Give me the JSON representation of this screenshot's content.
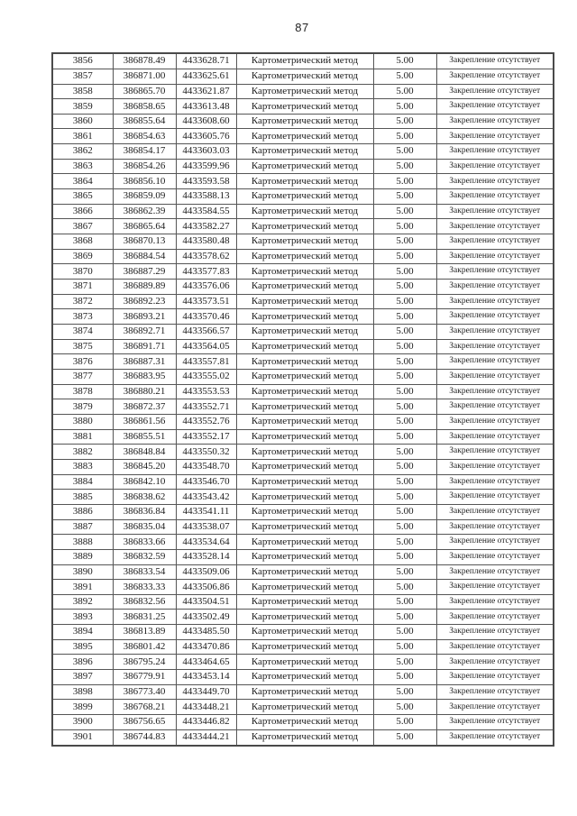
{
  "page": {
    "number": "87"
  },
  "table": {
    "method_label": "Картометрический метод",
    "precision_value": "5.00",
    "fixation_label": "Закрепление отсутствует",
    "rows": [
      [
        "3856",
        "386878.49",
        "4433628.71"
      ],
      [
        "3857",
        "386871.00",
        "4433625.61"
      ],
      [
        "3858",
        "386865.70",
        "4433621.87"
      ],
      [
        "3859",
        "386858.65",
        "4433613.48"
      ],
      [
        "3860",
        "386855.64",
        "4433608.60"
      ],
      [
        "3861",
        "386854.63",
        "4433605.76"
      ],
      [
        "3862",
        "386854.17",
        "4433603.03"
      ],
      [
        "3863",
        "386854.26",
        "4433599.96"
      ],
      [
        "3864",
        "386856.10",
        "4433593.58"
      ],
      [
        "3865",
        "386859.09",
        "4433588.13"
      ],
      [
        "3866",
        "386862.39",
        "4433584.55"
      ],
      [
        "3867",
        "386865.64",
        "4433582.27"
      ],
      [
        "3868",
        "386870.13",
        "4433580.48"
      ],
      [
        "3869",
        "386884.54",
        "4433578.62"
      ],
      [
        "3870",
        "386887.29",
        "4433577.83"
      ],
      [
        "3871",
        "386889.89",
        "4433576.06"
      ],
      [
        "3872",
        "386892.23",
        "4433573.51"
      ],
      [
        "3873",
        "386893.21",
        "4433570.46"
      ],
      [
        "3874",
        "386892.71",
        "4433566.57"
      ],
      [
        "3875",
        "386891.71",
        "4433564.05"
      ],
      [
        "3876",
        "386887.31",
        "4433557.81"
      ],
      [
        "3877",
        "386883.95",
        "4433555.02"
      ],
      [
        "3878",
        "386880.21",
        "4433553.53"
      ],
      [
        "3879",
        "386872.37",
        "4433552.71"
      ],
      [
        "3880",
        "386861.56",
        "4433552.76"
      ],
      [
        "3881",
        "386855.51",
        "4433552.17"
      ],
      [
        "3882",
        "386848.84",
        "4433550.32"
      ],
      [
        "3883",
        "386845.20",
        "4433548.70"
      ],
      [
        "3884",
        "386842.10",
        "4433546.70"
      ],
      [
        "3885",
        "386838.62",
        "4433543.42"
      ],
      [
        "3886",
        "386836.84",
        "4433541.11"
      ],
      [
        "3887",
        "386835.04",
        "4433538.07"
      ],
      [
        "3888",
        "386833.66",
        "4433534.64"
      ],
      [
        "3889",
        "386832.59",
        "4433528.14"
      ],
      [
        "3890",
        "386833.54",
        "4433509.06"
      ],
      [
        "3891",
        "386833.33",
        "4433506.86"
      ],
      [
        "3892",
        "386832.56",
        "4433504.51"
      ],
      [
        "3893",
        "386831.25",
        "4433502.49"
      ],
      [
        "3894",
        "386813.89",
        "4433485.50"
      ],
      [
        "3895",
        "386801.42",
        "4433470.86"
      ],
      [
        "3896",
        "386795.24",
        "4433464.65"
      ],
      [
        "3897",
        "386779.91",
        "4433453.14"
      ],
      [
        "3898",
        "386773.40",
        "4433449.70"
      ],
      [
        "3899",
        "386768.21",
        "4433448.21"
      ],
      [
        "3900",
        "386756.65",
        "4433446.82"
      ],
      [
        "3901",
        "386744.83",
        "4433444.21"
      ]
    ]
  }
}
